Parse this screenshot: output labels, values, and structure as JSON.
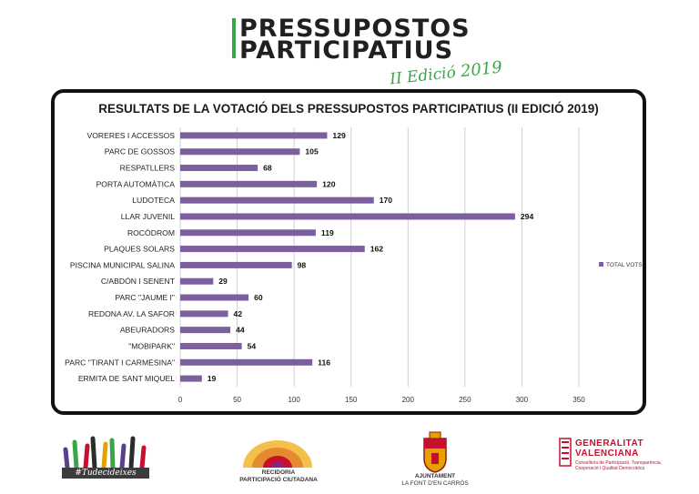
{
  "header": {
    "title_line1": "PRESSUPOSTOS",
    "title_line2": "PARTICIPATIUS",
    "edition": "II Edició",
    "year": "2019"
  },
  "chart_data": {
    "type": "bar",
    "orientation": "horizontal",
    "title": "RESULTATS DE LA VOTACIÓ DELS PRESSUPOSTOS PARTICIPATIUS (II EDICIÓ 2019)",
    "categories": [
      "VORERES I ACCESSOS",
      "PARC DE GOSSOS",
      "RESPATLLERS",
      "PORTA AUTOMÀTICA",
      "LUDOTECA",
      "LLAR JUVENIL",
      "ROCÒDROM",
      "PLAQUES SOLARS",
      "PISCINA MUNICIPAL SALINA",
      "C/ABDÓN I SENENT",
      "PARC \"JAUME I\"",
      "REDONA AV. LA SAFOR",
      "ABEURADORS",
      "\"MOBIPARK\"",
      "PARC \"TIRANT I CARMESINA\"",
      "ERMITA DE SANT MIQUEL"
    ],
    "series": [
      {
        "name": "TOTAL VOTS",
        "values": [
          129,
          105,
          68,
          120,
          170,
          294,
          119,
          162,
          98,
          29,
          60,
          42,
          44,
          54,
          116,
          19
        ]
      }
    ],
    "xlim": [
      0,
      350
    ],
    "xticks": [
      "0",
      "50",
      "100",
      "150",
      "200",
      "250",
      "300",
      "350"
    ],
    "grid": true,
    "legend": "right",
    "bar_color": "#7b5f9e"
  },
  "footer": {
    "hashtag": "#Tudecideixes",
    "recidoria_line1": "RECIDORIA",
    "recidoria_line2": "PARTICIPACIÓ CIUTADANA",
    "ajuntament_line1": "AJUNTAMENT",
    "ajuntament_line2": "LA FONT D'EN CARRÒS",
    "gv_line1": "GENERALITAT",
    "gv_line2": "VALENCIANA",
    "gv_sub": "Conselleria de Participació, Transparència, Cooperació i Qualitat Democràtica"
  },
  "colors": {
    "accent_green": "#3aa54a",
    "gv_red": "#c8102e",
    "bar_purple": "#7b5f9e"
  }
}
